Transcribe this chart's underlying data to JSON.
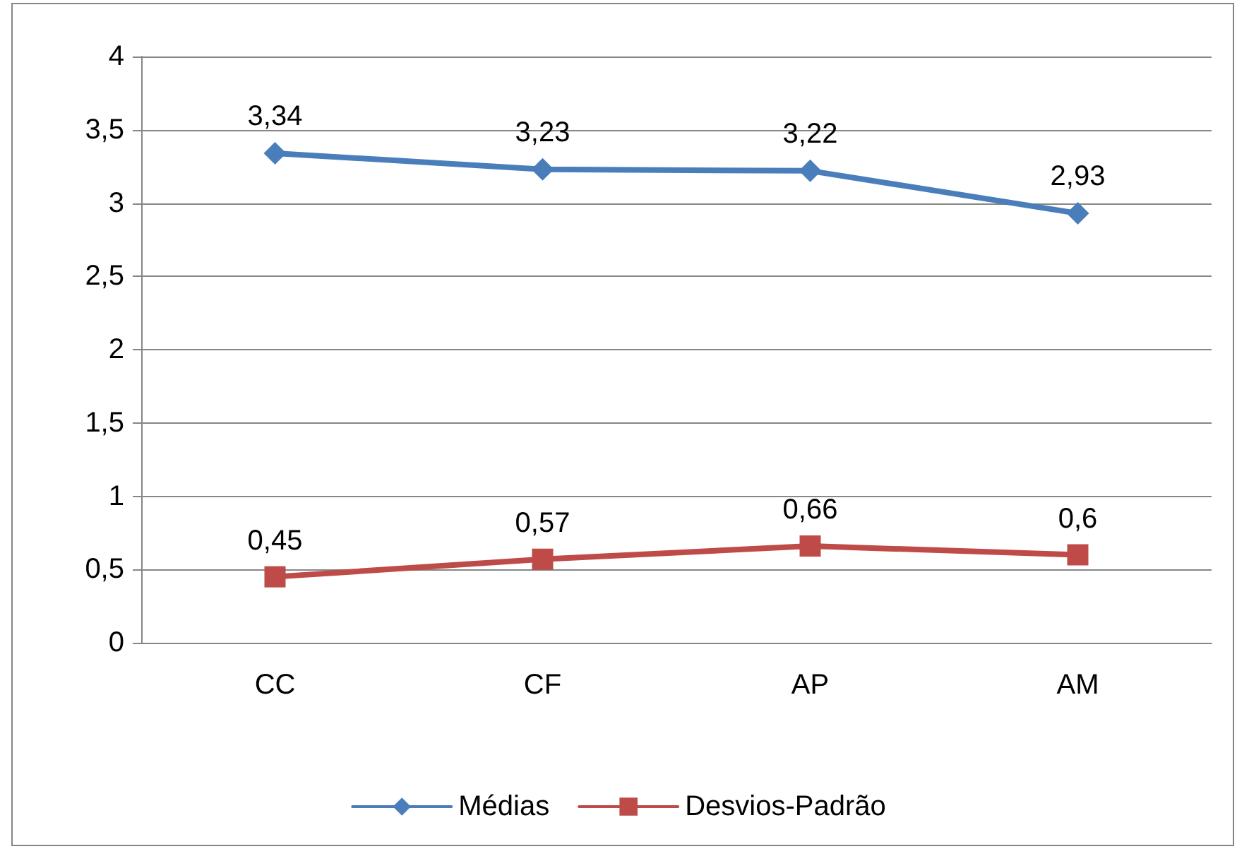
{
  "chart_data": {
    "type": "line",
    "categories": [
      "CC",
      "CF",
      "AP",
      "AM"
    ],
    "series": [
      {
        "name": "Médias",
        "color": "#4a7ebb",
        "marker": "diamond",
        "values": [
          3.34,
          3.23,
          3.22,
          2.93
        ],
        "value_labels": [
          "3,34",
          "3,23",
          "3,22",
          "2,93"
        ]
      },
      {
        "name": "Desvios-Padrão",
        "color": "#be4b48",
        "marker": "square",
        "values": [
          0.45,
          0.57,
          0.66,
          0.6
        ],
        "value_labels": [
          "0,45",
          "0,57",
          "0,66",
          "0,6"
        ]
      }
    ],
    "ylim": [
      0,
      4
    ],
    "yticks": [
      0,
      {
        "value": 0.5,
        "label": "0,5"
      },
      1,
      {
        "value": 1.5,
        "label": "1,5"
      },
      2,
      {
        "value": 2.5,
        "label": "2,5"
      },
      3,
      {
        "value": 3.5,
        "label": "3,5"
      },
      4
    ],
    "grid": "y",
    "legend": "bottom",
    "line_style": "solid"
  }
}
